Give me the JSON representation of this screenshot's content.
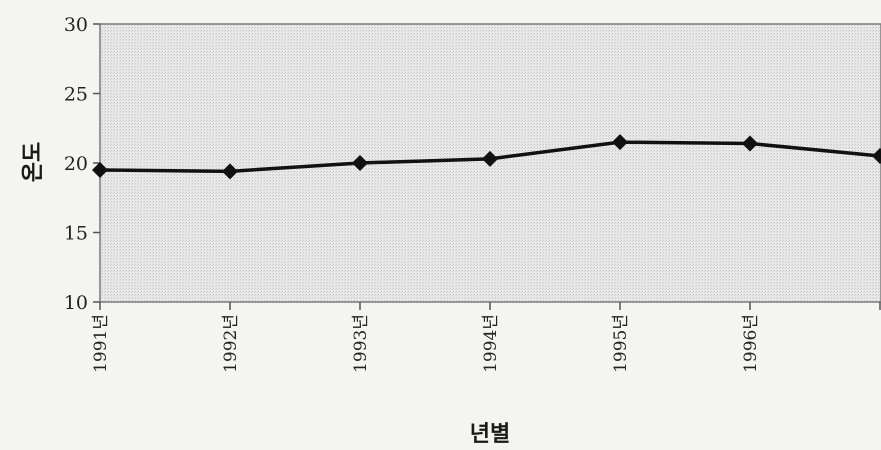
{
  "chart_data": {
    "type": "line",
    "title": "",
    "xlabel": "년별",
    "ylabel": "온도",
    "categories": [
      "1991년",
      "1992년",
      "1993년",
      "1994년",
      "1995년",
      "1996년",
      ""
    ],
    "series": [
      {
        "values": [
          19.5,
          19.4,
          20.0,
          20.3,
          21.5,
          21.4,
          20.5
        ]
      }
    ],
    "ylim": [
      10,
      30
    ],
    "yticks": [
      10,
      15,
      20,
      25,
      30
    ],
    "grid": false,
    "legend": "none",
    "colors": {
      "line": "#111111",
      "plot_bg": "#e6e6e6",
      "frame": "#7a7a7a"
    }
  }
}
